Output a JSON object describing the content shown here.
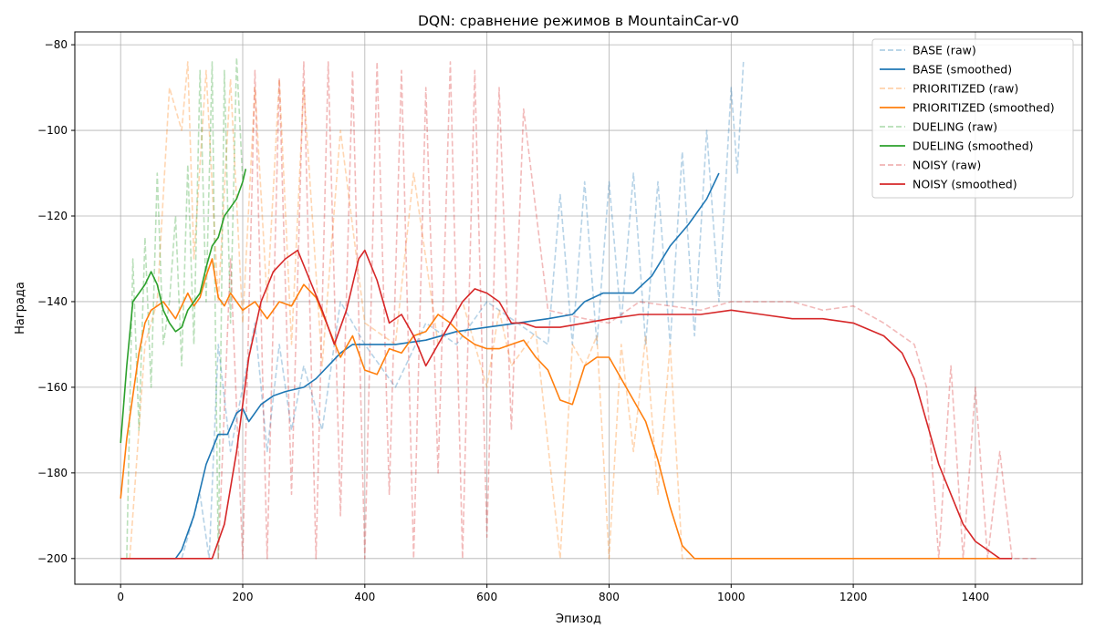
{
  "chart_data": {
    "type": "line",
    "title": "DQN: сравнение режимов в MountainCar-v0",
    "xlabel": "Эпизод",
    "ylabel": "Награда",
    "xlim": [
      -75,
      1575
    ],
    "ylim": [
      -206,
      -77
    ],
    "xticks": [
      0,
      200,
      400,
      600,
      800,
      1000,
      1200,
      1400
    ],
    "yticks": [
      -200,
      -180,
      -160,
      -140,
      -120,
      -100,
      -80
    ],
    "grid": true,
    "legend_position": "top-right",
    "colors": {
      "BASE": "#1f77b4",
      "PRIORITIZED": "#ff7f0e",
      "DUELING": "#2ca02c",
      "NOISY": "#d62728"
    },
    "series": [
      {
        "name": "BASE (smoothed)",
        "group": "BASE",
        "style": "smoothed",
        "x": [
          0,
          90,
          100,
          120,
          140,
          160,
          175,
          190,
          200,
          210,
          230,
          250,
          270,
          300,
          320,
          340,
          360,
          380,
          400,
          450,
          500,
          550,
          600,
          650,
          700,
          740,
          760,
          790,
          810,
          840,
          870,
          900,
          930,
          960,
          980
        ],
        "y": [
          -200,
          -200,
          -198,
          -190,
          -178,
          -171,
          -171,
          -166,
          -165,
          -168,
          -164,
          -162,
          -161,
          -160,
          -158,
          -155,
          -152,
          -150,
          -150,
          -150,
          -149,
          -147,
          -146,
          -145,
          -144,
          -143,
          -140,
          -138,
          -138,
          -138,
          -134,
          -127,
          -122,
          -116,
          -110
        ]
      },
      {
        "name": "BASE (raw)",
        "group": "BASE",
        "style": "raw",
        "x": [
          100,
          130,
          145,
          160,
          180,
          200,
          220,
          240,
          260,
          280,
          300,
          330,
          360,
          400,
          450,
          500,
          550,
          600,
          650,
          700,
          720,
          740,
          760,
          780,
          800,
          820,
          840,
          860,
          880,
          900,
          920,
          940,
          960,
          980,
          1000,
          1010,
          1020
        ],
        "y": [
          -200,
          -185,
          -200,
          -150,
          -175,
          -160,
          -145,
          -175,
          -150,
          -170,
          -155,
          -170,
          -140,
          -150,
          -160,
          -145,
          -150,
          -140,
          -145,
          -150,
          -115,
          -150,
          -112,
          -150,
          -112,
          -145,
          -110,
          -150,
          -112,
          -150,
          -105,
          -148,
          -100,
          -140,
          -90,
          -110,
          -84
        ]
      },
      {
        "name": "PRIORITIZED (smoothed)",
        "group": "PRIORITIZED",
        "style": "smoothed",
        "x": [
          0,
          10,
          20,
          30,
          40,
          50,
          60,
          70,
          80,
          90,
          100,
          110,
          120,
          130,
          140,
          150,
          160,
          170,
          180,
          190,
          200,
          220,
          240,
          260,
          280,
          300,
          320,
          340,
          360,
          380,
          400,
          420,
          440,
          460,
          480,
          500,
          520,
          540,
          560,
          580,
          600,
          620,
          640,
          660,
          680,
          700,
          720,
          740,
          760,
          780,
          800,
          820,
          840,
          860,
          880,
          900,
          920,
          940,
          1000,
          1100,
          1200,
          1300,
          1400,
          1440
        ],
        "y": [
          -186,
          -172,
          -162,
          -152,
          -145,
          -142,
          -141,
          -140,
          -142,
          -144,
          -141,
          -138,
          -141,
          -139,
          -134,
          -130,
          -139,
          -141,
          -138,
          -140,
          -142,
          -140,
          -144,
          -140,
          -141,
          -136,
          -139,
          -146,
          -153,
          -148,
          -156,
          -157,
          -151,
          -152,
          -148,
          -147,
          -143,
          -145,
          -148,
          -150,
          -151,
          -151,
          -150,
          -149,
          -153,
          -156,
          -163,
          -164,
          -155,
          -153,
          -153,
          -158,
          -163,
          -168,
          -177,
          -188,
          -197,
          -200,
          -200,
          -200,
          -200,
          -200,
          -200,
          -200
        ]
      },
      {
        "name": "PRIORITIZED (raw)",
        "group": "PRIORITIZED",
        "style": "raw",
        "x": [
          15,
          40,
          60,
          80,
          100,
          110,
          120,
          140,
          160,
          180,
          200,
          220,
          240,
          260,
          280,
          300,
          330,
          360,
          400,
          450,
          480,
          520,
          560,
          600,
          620,
          640,
          680,
          720,
          740,
          760,
          780,
          800,
          820,
          840,
          860,
          880,
          900,
          920,
          940
        ],
        "y": [
          -200,
          -150,
          -140,
          -90,
          -100,
          -84,
          -130,
          -86,
          -140,
          -88,
          -145,
          -90,
          -140,
          -88,
          -150,
          -90,
          -155,
          -100,
          -145,
          -150,
          -110,
          -150,
          -140,
          -160,
          -142,
          -155,
          -147,
          -200,
          -150,
          -155,
          -148,
          -200,
          -150,
          -175,
          -148,
          -185,
          -150,
          -200,
          -200
        ]
      },
      {
        "name": "DUELING (smoothed)",
        "group": "DUELING",
        "style": "smoothed",
        "x": [
          0,
          10,
          20,
          30,
          40,
          50,
          60,
          70,
          80,
          90,
          100,
          110,
          120,
          130,
          140,
          150,
          160,
          170,
          180,
          190,
          200,
          205
        ],
        "y": [
          -173,
          -155,
          -140,
          -138,
          -136,
          -133,
          -136,
          -142,
          -145,
          -147,
          -146,
          -142,
          -140,
          -138,
          -132,
          -127,
          -125,
          -120,
          -118,
          -116,
          -112,
          -109
        ]
      },
      {
        "name": "DUELING (raw)",
        "group": "DUELING",
        "style": "raw",
        "x": [
          10,
          20,
          30,
          40,
          50,
          60,
          70,
          80,
          90,
          100,
          110,
          120,
          130,
          140,
          150,
          160,
          170,
          180,
          190,
          200
        ],
        "y": [
          -200,
          -130,
          -170,
          -125,
          -160,
          -110,
          -150,
          -140,
          -120,
          -155,
          -108,
          -150,
          -86,
          -140,
          -84,
          -200,
          -86,
          -145,
          -83,
          -112
        ]
      },
      {
        "name": "NOISY (smoothed)",
        "group": "NOISY",
        "style": "smoothed",
        "x": [
          0,
          150,
          170,
          190,
          210,
          230,
          250,
          270,
          290,
          310,
          330,
          350,
          370,
          390,
          400,
          420,
          440,
          460,
          480,
          500,
          520,
          540,
          560,
          580,
          600,
          620,
          640,
          660,
          680,
          700,
          720,
          760,
          800,
          850,
          900,
          950,
          1000,
          1050,
          1100,
          1150,
          1200,
          1250,
          1280,
          1300,
          1320,
          1340,
          1360,
          1380,
          1400,
          1420,
          1440,
          1450,
          1460
        ],
        "y": [
          -200,
          -200,
          -192,
          -175,
          -153,
          -140,
          -133,
          -130,
          -128,
          -135,
          -142,
          -150,
          -142,
          -130,
          -128,
          -135,
          -145,
          -143,
          -148,
          -155,
          -150,
          -145,
          -140,
          -137,
          -138,
          -140,
          -145,
          -145,
          -146,
          -146,
          -146,
          -145,
          -144,
          -143,
          -143,
          -143,
          -142,
          -143,
          -144,
          -144,
          -145,
          -148,
          -152,
          -158,
          -168,
          -178,
          -185,
          -192,
          -196,
          -198,
          -200,
          -200,
          -200
        ]
      },
      {
        "name": "NOISY (raw)",
        "group": "NOISY",
        "style": "raw",
        "x": [
          160,
          180,
          200,
          220,
          240,
          260,
          280,
          300,
          320,
          340,
          360,
          380,
          400,
          420,
          440,
          460,
          480,
          500,
          520,
          540,
          560,
          580,
          600,
          620,
          640,
          660,
          700,
          760,
          800,
          850,
          900,
          950,
          1000,
          1050,
          1100,
          1150,
          1200,
          1250,
          1300,
          1320,
          1340,
          1360,
          1380,
          1400,
          1420,
          1440,
          1460,
          1500
        ],
        "y": [
          -200,
          -130,
          -200,
          -86,
          -200,
          -88,
          -185,
          -84,
          -200,
          -84,
          -190,
          -86,
          -200,
          -84,
          -185,
          -86,
          -200,
          -90,
          -180,
          -84,
          -200,
          -86,
          -195,
          -90,
          -170,
          -95,
          -142,
          -144,
          -145,
          -140,
          -141,
          -142,
          -140,
          -140,
          -140,
          -142,
          -141,
          -145,
          -150,
          -160,
          -200,
          -155,
          -200,
          -160,
          -200,
          -175,
          -200,
          -200
        ]
      }
    ]
  }
}
